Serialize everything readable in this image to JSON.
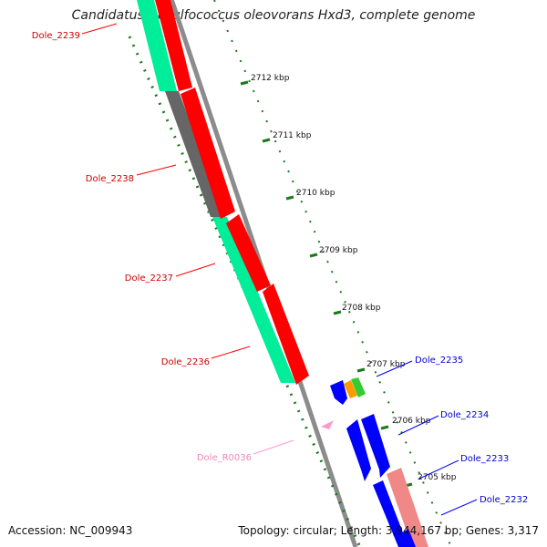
{
  "title": "Candidatus Desulfococcus oleovorans Hxd3, complete genome",
  "footer": {
    "accession": "Accession: NC_009943",
    "summary": "Topology: circular; Length: 3,944,167 bp; Genes: 3,317"
  },
  "ticks": [
    "2712 kbp",
    "2711 kbp",
    "2710 kbp",
    "2709 kbp",
    "2708 kbp",
    "2707 kbp",
    "2706 kbp",
    "2705 kbp"
  ],
  "genes_left": [
    "Dole_2239",
    "Dole_2238",
    "Dole_2237",
    "Dole_2236"
  ],
  "gene_trna": "Dole_R0036",
  "genes_right": [
    "Dole_2235",
    "Dole_2234",
    "Dole_2233",
    "Dole_2232"
  ],
  "colors": {
    "forward_cds": "#ff0000",
    "reverse_cds": "#0000ff",
    "rrna_teal": "#00ee99",
    "gray_feature": "#666666",
    "trna": "#ff99cc",
    "backbone": "#8c8c8c",
    "tick": "#1a7a1a"
  }
}
